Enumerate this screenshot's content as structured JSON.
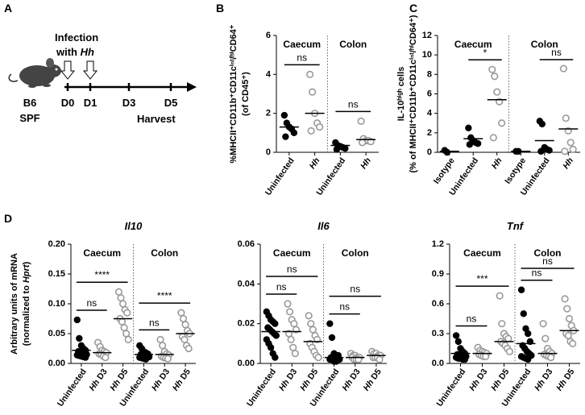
{
  "panel_a": {
    "label": "A",
    "infection": [
      "Infection",
      "with Hh"
    ],
    "timepoints": [
      "D0",
      "D1",
      "D3",
      "D5"
    ],
    "harvest": "Harvest",
    "strain": [
      "B6",
      "SPF"
    ]
  },
  "chart_data": [
    {
      "type": "dotplot",
      "panel": "B",
      "ylabel": [
        "%MHCII⁺CD11b⁺CD11cⁱⁿᵗ/ʰⁱCD64⁺",
        "(of CD45⁺)"
      ],
      "ylim": [
        0,
        6
      ],
      "yticks": [
        0,
        2,
        4,
        6
      ],
      "groups": [
        {
          "name": "Caecum",
          "categories": [
            "Uninfected",
            "Hh"
          ],
          "colors": [
            "#000000",
            "#9a9a9a"
          ],
          "filled": [
            true,
            false
          ],
          "values": [
            [
              1.9,
              1.5,
              1.3,
              1.2,
              1.0,
              0.8
            ],
            [
              4.0,
              3.1,
              2.0,
              1.5,
              1.3,
              1.1
            ]
          ],
          "means": [
            1.3,
            2.0
          ]
        },
        {
          "name": "Colon",
          "categories": [
            "Uninfected",
            "Hh"
          ],
          "colors": [
            "#000000",
            "#9a9a9a"
          ],
          "filled": [
            true,
            false
          ],
          "values": [
            [
              0.5,
              0.35,
              0.3,
              0.25,
              0.2,
              0.15
            ],
            [
              1.6,
              0.7,
              0.6,
              0.6,
              0.55,
              0.5
            ]
          ],
          "means": [
            0.35,
            0.65
          ]
        }
      ],
      "annotations": [
        {
          "text": "ns",
          "group": 0,
          "from": 0,
          "to": 1
        },
        {
          "text": "ns",
          "group": 1,
          "from": 0,
          "to": 1
        }
      ]
    },
    {
      "type": "dotplot",
      "panel": "C",
      "ylabel": [
        "IL-10ʰⁱᵍʰ cells",
        "(% of MHCII⁺CD11b⁺CD11cⁱⁿᵗ/ʰⁱCD64⁺)"
      ],
      "ylim": [
        0,
        12
      ],
      "yticks": [
        0,
        2,
        4,
        6,
        8,
        10,
        12
      ],
      "groups": [
        {
          "name": "Caecum",
          "categories": [
            "Isotype",
            "Uninfected",
            "Hh"
          ],
          "colors": [
            "#000000",
            "#000000",
            "#9a9a9a"
          ],
          "filled": [
            true,
            true,
            false
          ],
          "values": [
            [
              0.2,
              0.0
            ],
            [
              2.5,
              1.5,
              1.2,
              1.0,
              0.9,
              0.8
            ],
            [
              8.5,
              7.8,
              6.2,
              5.2,
              3.0,
              1.5
            ]
          ],
          "means": [
            0.1,
            1.4,
            5.4
          ]
        },
        {
          "name": "Colon",
          "categories": [
            "Isotype",
            "Uninfected",
            "Hh"
          ],
          "colors": [
            "#000000",
            "#000000",
            "#9a9a9a"
          ],
          "filled": [
            true,
            true,
            false
          ],
          "values": [
            [
              0.1,
              0.1
            ],
            [
              3.2,
              2.9,
              0.5,
              0.3,
              0.2,
              0.1
            ],
            [
              8.6,
              3.5,
              2.2,
              1.0,
              0.3,
              0.1
            ]
          ],
          "means": [
            0.1,
            1.2,
            2.4
          ]
        }
      ],
      "annotations": [
        {
          "text": "*",
          "group": 0,
          "from": 1,
          "to": 2
        },
        {
          "text": "ns",
          "group": 1,
          "from": 1,
          "to": 2
        }
      ]
    },
    {
      "type": "dotplot",
      "panel": "D",
      "title": "Il10",
      "ylabel": [
        "Arbitrary units of mRNA",
        "(normalized to Hprt)"
      ],
      "ylim": [
        0,
        0.2
      ],
      "yticks": [
        {
          "value": 0,
          "label": "0.00"
        },
        {
          "value": 0.05,
          "label": "0.05"
        },
        {
          "value": 0.1,
          "label": "0.10"
        },
        {
          "value": 0.15,
          "label": "0.15"
        },
        {
          "value": 0.2,
          "label": "0.20"
        }
      ],
      "groups": [
        {
          "name": "Caecum",
          "categories": [
            "Uninfected",
            "Hh D3",
            "Hh D5"
          ],
          "colors": [
            "#000000",
            "#9a9a9a",
            "#9a9a9a"
          ],
          "filled": [
            true,
            false,
            false
          ],
          "values": [
            [
              0.073,
              0.042,
              0.03,
              0.025,
              0.022,
              0.02,
              0.018,
              0.017,
              0.016,
              0.015,
              0.014,
              0.013,
              0.012,
              0.011,
              0.01
            ],
            [
              0.035,
              0.028,
              0.022,
              0.02,
              0.018,
              0.016,
              0.015,
              0.012,
              0.01
            ],
            [
              0.12,
              0.11,
              0.1,
              0.09,
              0.085,
              0.075,
              0.07,
              0.06,
              0.05,
              0.04
            ]
          ],
          "means": [
            0.022,
            0.018,
            0.075
          ]
        },
        {
          "name": "Colon",
          "categories": [
            "Uninfected",
            "Hh D3",
            "Hh D5"
          ],
          "colors": [
            "#000000",
            "#9a9a9a",
            "#9a9a9a"
          ],
          "filled": [
            true,
            false,
            false
          ],
          "values": [
            [
              0.03,
              0.025,
              0.02,
              0.018,
              0.016,
              0.015,
              0.014,
              0.013,
              0.012,
              0.011,
              0.01,
              0.009,
              0.008,
              0.007
            ],
            [
              0.04,
              0.03,
              0.02,
              0.016,
              0.014,
              0.012,
              0.01,
              0.009,
              0.008
            ],
            [
              0.085,
              0.075,
              0.065,
              0.055,
              0.05,
              0.045,
              0.04,
              0.03,
              0.025
            ]
          ],
          "means": [
            0.015,
            0.015,
            0.05
          ]
        }
      ],
      "annotations": [
        {
          "text": "ns",
          "group": 0,
          "from": 0,
          "to": 1
        },
        {
          "text": "****",
          "group": 0,
          "from": 0,
          "to": 2
        },
        {
          "text": "ns",
          "group": 1,
          "from": 0,
          "to": 1
        },
        {
          "text": "****",
          "group": 1,
          "from": 0,
          "to": 2
        }
      ]
    },
    {
      "type": "dotplot",
      "title": "Il6",
      "ylim": [
        0,
        0.06
      ],
      "yticks": [
        {
          "value": 0,
          "label": "0.00"
        },
        {
          "value": 0.02,
          "label": "0.02"
        },
        {
          "value": 0.04,
          "label": "0.04"
        },
        {
          "value": 0.06,
          "label": "0.06"
        }
      ],
      "groups": [
        {
          "name": "Caecum",
          "categories": [
            "Uninfected",
            "Hh D3",
            "Hh D5"
          ],
          "colors": [
            "#000000",
            "#9a9a9a",
            "#9a9a9a"
          ],
          "filled": [
            true,
            false,
            false
          ],
          "values": [
            [
              0.026,
              0.024,
              0.022,
              0.021,
              0.02,
              0.018,
              0.017,
              0.016,
              0.015,
              0.014,
              0.012,
              0.01,
              0.008,
              0.005,
              0.003
            ],
            [
              0.03,
              0.026,
              0.022,
              0.02,
              0.017,
              0.015,
              0.012,
              0.008,
              0.005
            ],
            [
              0.024,
              0.02,
              0.017,
              0.014,
              0.012,
              0.01,
              0.008,
              0.006,
              0.004,
              0.003
            ]
          ],
          "means": [
            0.016,
            0.016,
            0.011
          ]
        },
        {
          "name": "Colon",
          "categories": [
            "Uninfected",
            "Hh D3",
            "Hh D5"
          ],
          "colors": [
            "#000000",
            "#9a9a9a",
            "#9a9a9a"
          ],
          "filled": [
            true,
            false,
            false
          ],
          "values": [
            [
              0.02,
              0.013,
              0.005,
              0.004,
              0.004,
              0.003,
              0.003,
              0.003,
              0.002,
              0.002,
              0.002,
              0.002,
              0.001,
              0.001
            ],
            [
              0.005,
              0.004,
              0.004,
              0.003,
              0.003,
              0.003,
              0.002,
              0.002,
              0.002
            ],
            [
              0.006,
              0.005,
              0.005,
              0.004,
              0.004,
              0.003,
              0.003,
              0.003,
              0.002
            ]
          ],
          "means": [
            0.003,
            0.003,
            0.004
          ]
        }
      ],
      "annotations": [
        {
          "text": "ns",
          "group": 0,
          "from": 0,
          "to": 1
        },
        {
          "text": "ns",
          "group": 0,
          "from": 0,
          "to": 2
        },
        {
          "text": "ns",
          "group": 1,
          "from": 0,
          "to": 1
        },
        {
          "text": "ns",
          "group": 1,
          "from": 0,
          "to": 2
        }
      ]
    },
    {
      "type": "dotplot",
      "title": "Tnf",
      "ylim": [
        0,
        1.2
      ],
      "yticks": [
        {
          "value": 0,
          "label": "0.0"
        },
        0.3,
        0.6,
        0.9,
        1.2
      ],
      "groups": [
        {
          "name": "Caecum",
          "categories": [
            "Uninfected",
            "Hh D3",
            "Hh D5"
          ],
          "colors": [
            "#000000",
            "#9a9a9a",
            "#9a9a9a"
          ],
          "filled": [
            true,
            false,
            false
          ],
          "values": [
            [
              0.28,
              0.22,
              0.15,
              0.12,
              0.1,
              0.09,
              0.08,
              0.08,
              0.07,
              0.07,
              0.06,
              0.05,
              0.05,
              0.04,
              0.04
            ],
            [
              0.16,
              0.13,
              0.12,
              0.11,
              0.1,
              0.09,
              0.08,
              0.07,
              0.07
            ],
            [
              0.68,
              0.4,
              0.3,
              0.27,
              0.25,
              0.22,
              0.2,
              0.18,
              0.15,
              0.12
            ]
          ],
          "means": [
            0.1,
            0.1,
            0.22
          ]
        },
        {
          "name": "Colon",
          "categories": [
            "Uninfected",
            "Hh D3",
            "Hh D5"
          ],
          "colors": [
            "#000000",
            "#9a9a9a",
            "#9a9a9a"
          ],
          "filled": [
            true,
            false,
            false
          ],
          "values": [
            [
              0.74,
              0.5,
              0.35,
              0.3,
              0.22,
              0.18,
              0.15,
              0.12,
              0.1,
              0.08,
              0.07,
              0.06,
              0.05,
              0.04
            ],
            [
              0.4,
              0.25,
              0.15,
              0.12,
              0.1,
              0.09,
              0.08,
              0.07,
              0.06
            ],
            [
              0.65,
              0.55,
              0.45,
              0.38,
              0.33,
              0.3,
              0.28,
              0.22,
              0.2
            ]
          ],
          "means": [
            0.2,
            0.1,
            0.33
          ]
        }
      ],
      "annotations": [
        {
          "text": "ns",
          "group": 0,
          "from": 0,
          "to": 1
        },
        {
          "text": "***",
          "group": 0,
          "from": 0,
          "to": 2
        },
        {
          "text": "ns",
          "group": 1,
          "from": 0,
          "to": 1
        },
        {
          "text": "ns",
          "group": 1,
          "from": 0,
          "to": 2
        }
      ]
    }
  ]
}
